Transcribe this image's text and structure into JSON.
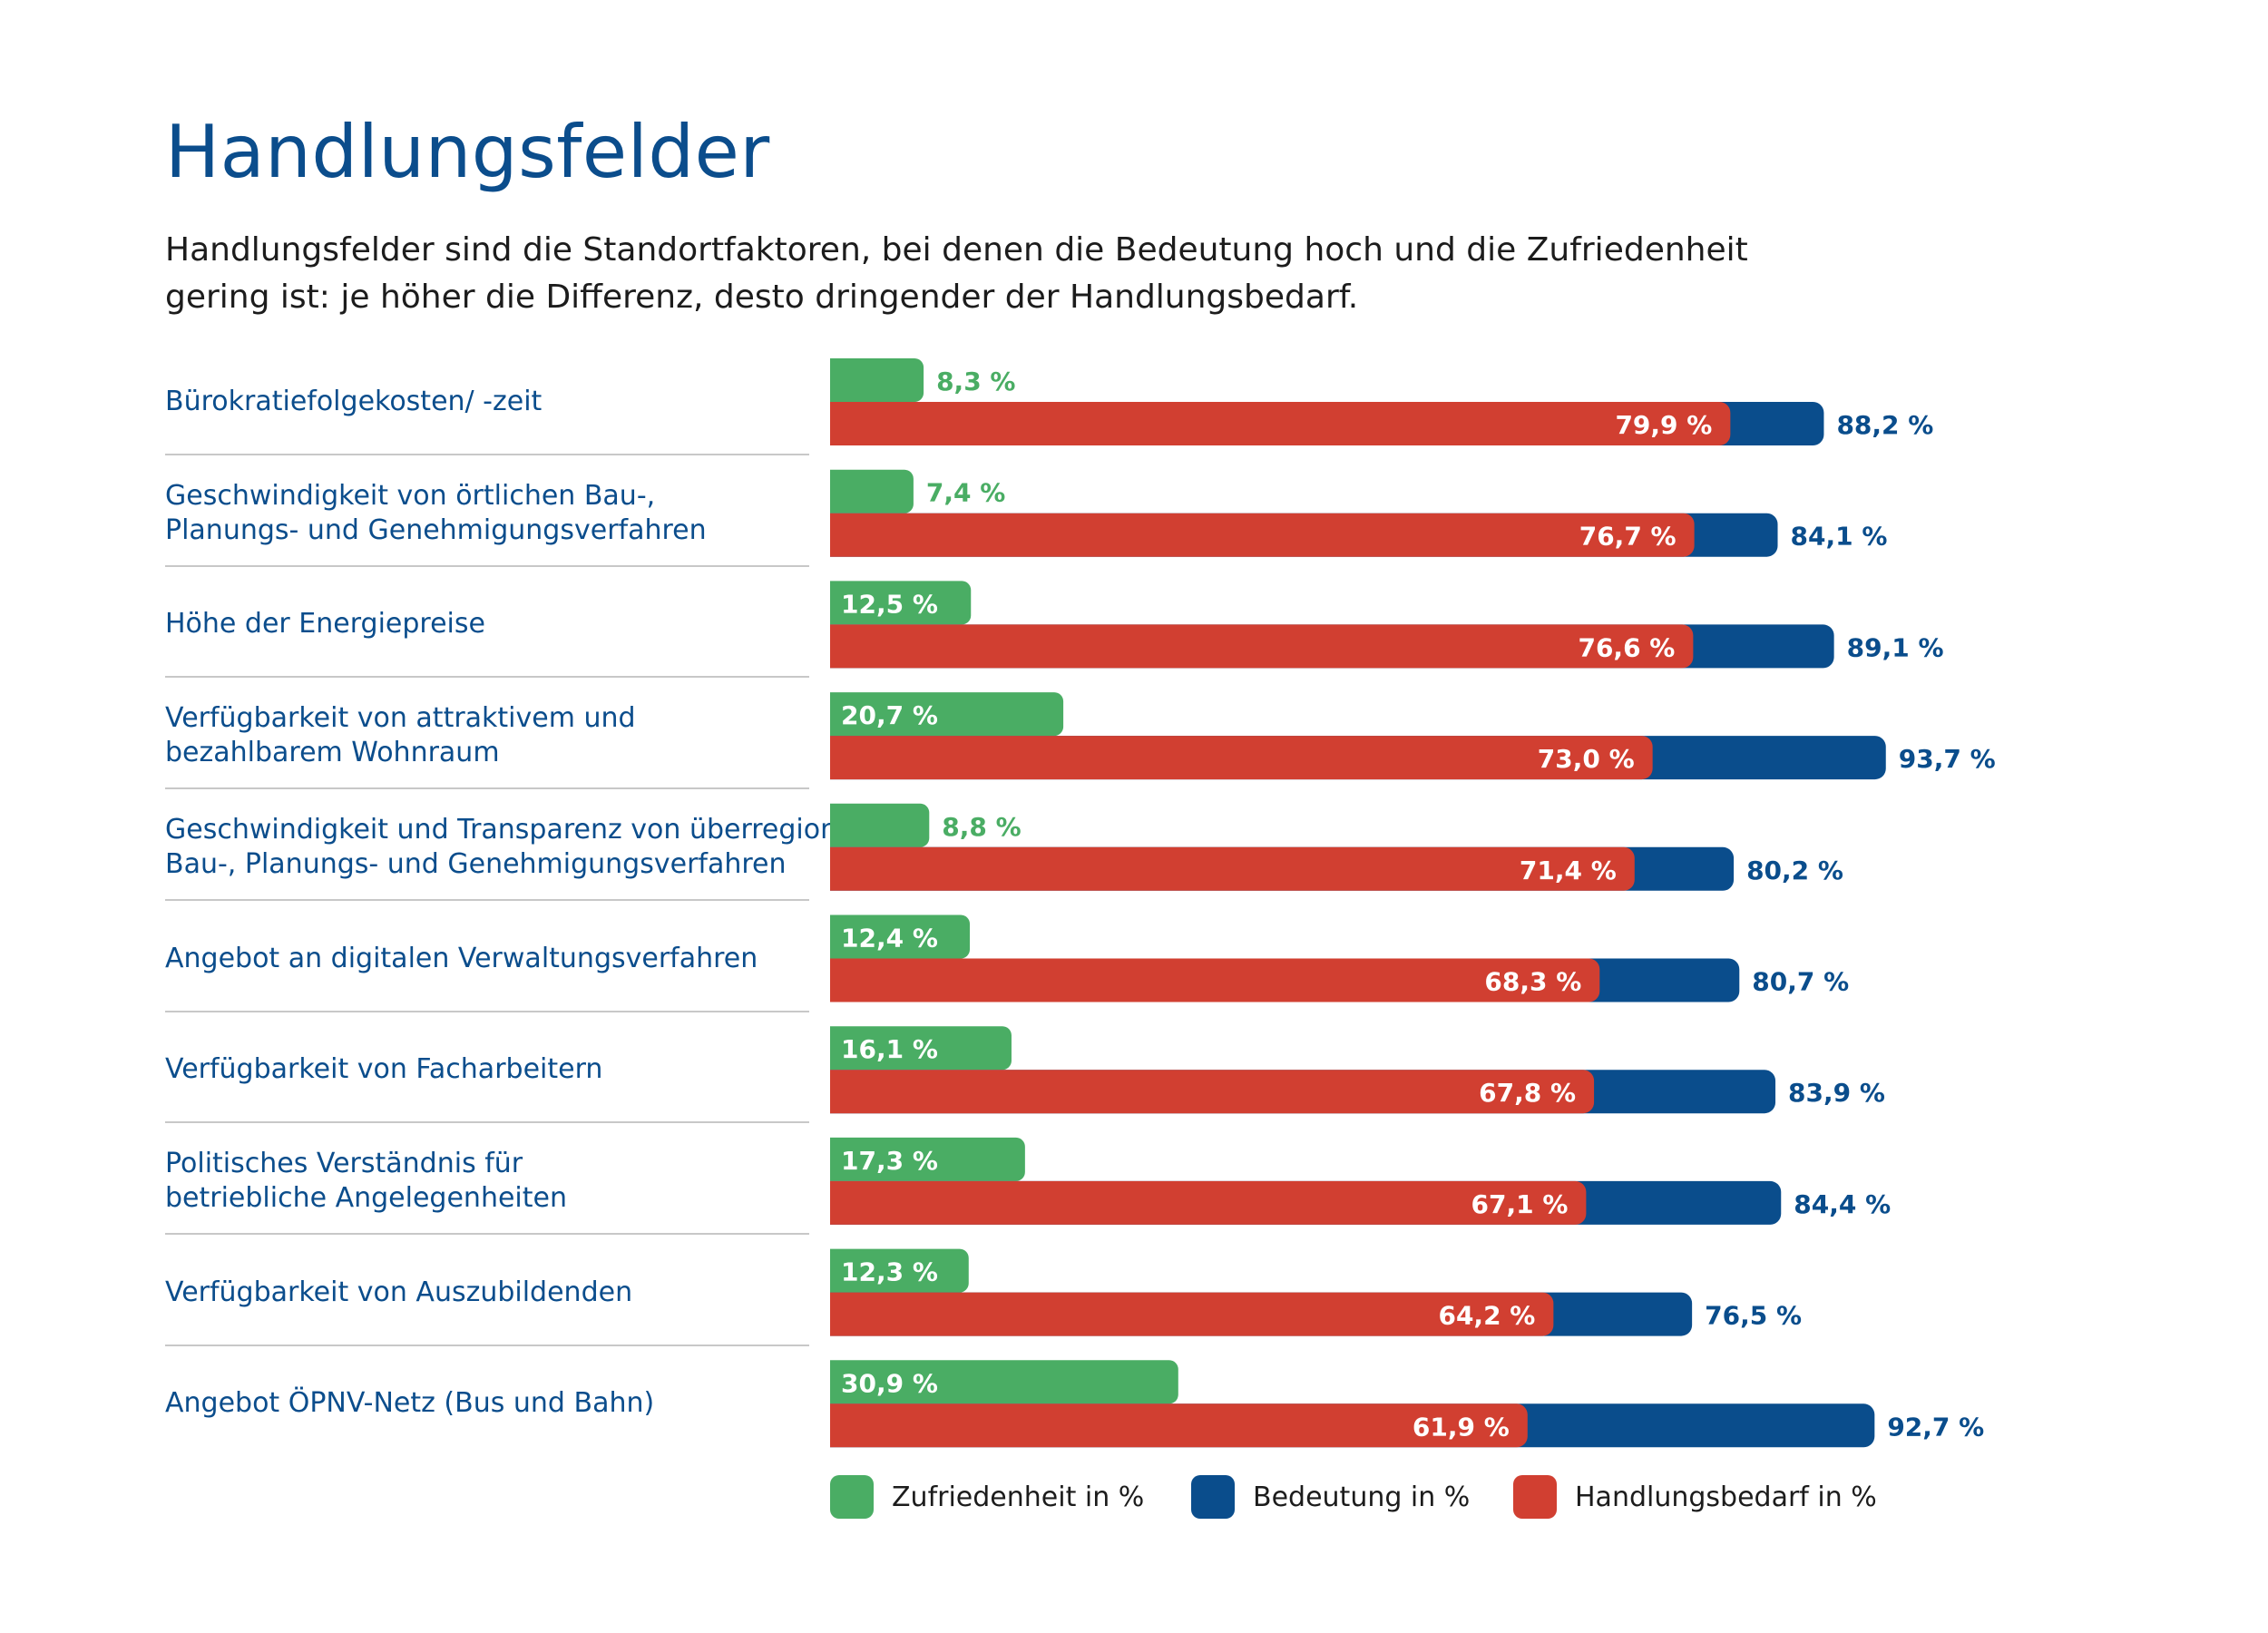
{
  "title": "Handlungsfelder",
  "subtitle": [
    "Handlungsfelder sind die Standortfaktoren, bei denen die Bedeutung hoch und die Zufriedenheit",
    "gering ist: je höher die Differenz, desto dringender der Handlungsbedarf."
  ],
  "colors": {
    "zufriedenheit": "#4aad64",
    "bedeutung": "#0a4d8c",
    "handlungsbedarf": "#d13f31",
    "title": "#0b4d8c"
  },
  "chart_data": {
    "type": "bar",
    "orientation": "horizontal",
    "title": "Handlungsfelder",
    "categories": [
      [
        "Bürokratiefolgekosten/ -zeit"
      ],
      [
        "Geschwindigkeit von örtlichen Bau-,",
        "Planungs- und Genehmigungsverfahren"
      ],
      [
        "Höhe der Energiepreise"
      ],
      [
        "Verfügbarkeit von attraktivem und",
        "bezahlbarem Wohnraum"
      ],
      [
        "Geschwindigkeit und Transparenz von überregionalen",
        "Bau-, Planungs- und Genehmigungsverfahren"
      ],
      [
        "Angebot an digitalen Verwaltungsverfahren"
      ],
      [
        "Verfügbarkeit von Facharbeitern"
      ],
      [
        "Politisches Verständnis für",
        "betriebliche Angelegenheiten"
      ],
      [
        "Verfügbarkeit von Auszubildenden"
      ],
      [
        "Angebot ÖPNV-Netz (Bus und Bahn)"
      ]
    ],
    "series": [
      {
        "name": "Zufriedenheit in %",
        "key": "zufriedenheit",
        "values": [
          8.3,
          7.4,
          12.5,
          20.7,
          8.8,
          12.4,
          16.1,
          17.3,
          12.3,
          30.9
        ],
        "labels": [
          "8,3 %",
          "7,4 %",
          "12,5 %",
          "20,7 %",
          "8,8 %",
          "12,4 %",
          "16,1 %",
          "17,3 %",
          "12,3 %",
          "30,9 %"
        ]
      },
      {
        "name": "Bedeutung in %",
        "key": "bedeutung",
        "values": [
          88.2,
          84.1,
          89.1,
          93.7,
          80.2,
          80.7,
          83.9,
          84.4,
          76.5,
          92.7
        ],
        "labels": [
          "88,2 %",
          "84,1 %",
          "89,1 %",
          "93,7 %",
          "80,2 %",
          "80,7 %",
          "83,9 %",
          "84,4 %",
          "76,5 %",
          "92,7 %"
        ]
      },
      {
        "name": "Handlungsbedarf in %",
        "key": "handlungsbedarf",
        "values": [
          79.9,
          76.7,
          76.6,
          73.0,
          71.4,
          68.3,
          67.8,
          67.1,
          64.2,
          61.9
        ],
        "labels": [
          "79,9 %",
          "76,7 %",
          "76,6 %",
          "73,0 %",
          "71,4 %",
          "68,3 %",
          "67,8 %",
          "67,1 %",
          "64,2 %",
          "61,9 %"
        ]
      }
    ],
    "xlim": [
      0,
      100
    ],
    "legend": [
      "Zufriedenheit in %",
      "Bedeutung in %",
      "Handlungsbedarf in %"
    ],
    "legend_position": "bottom"
  }
}
